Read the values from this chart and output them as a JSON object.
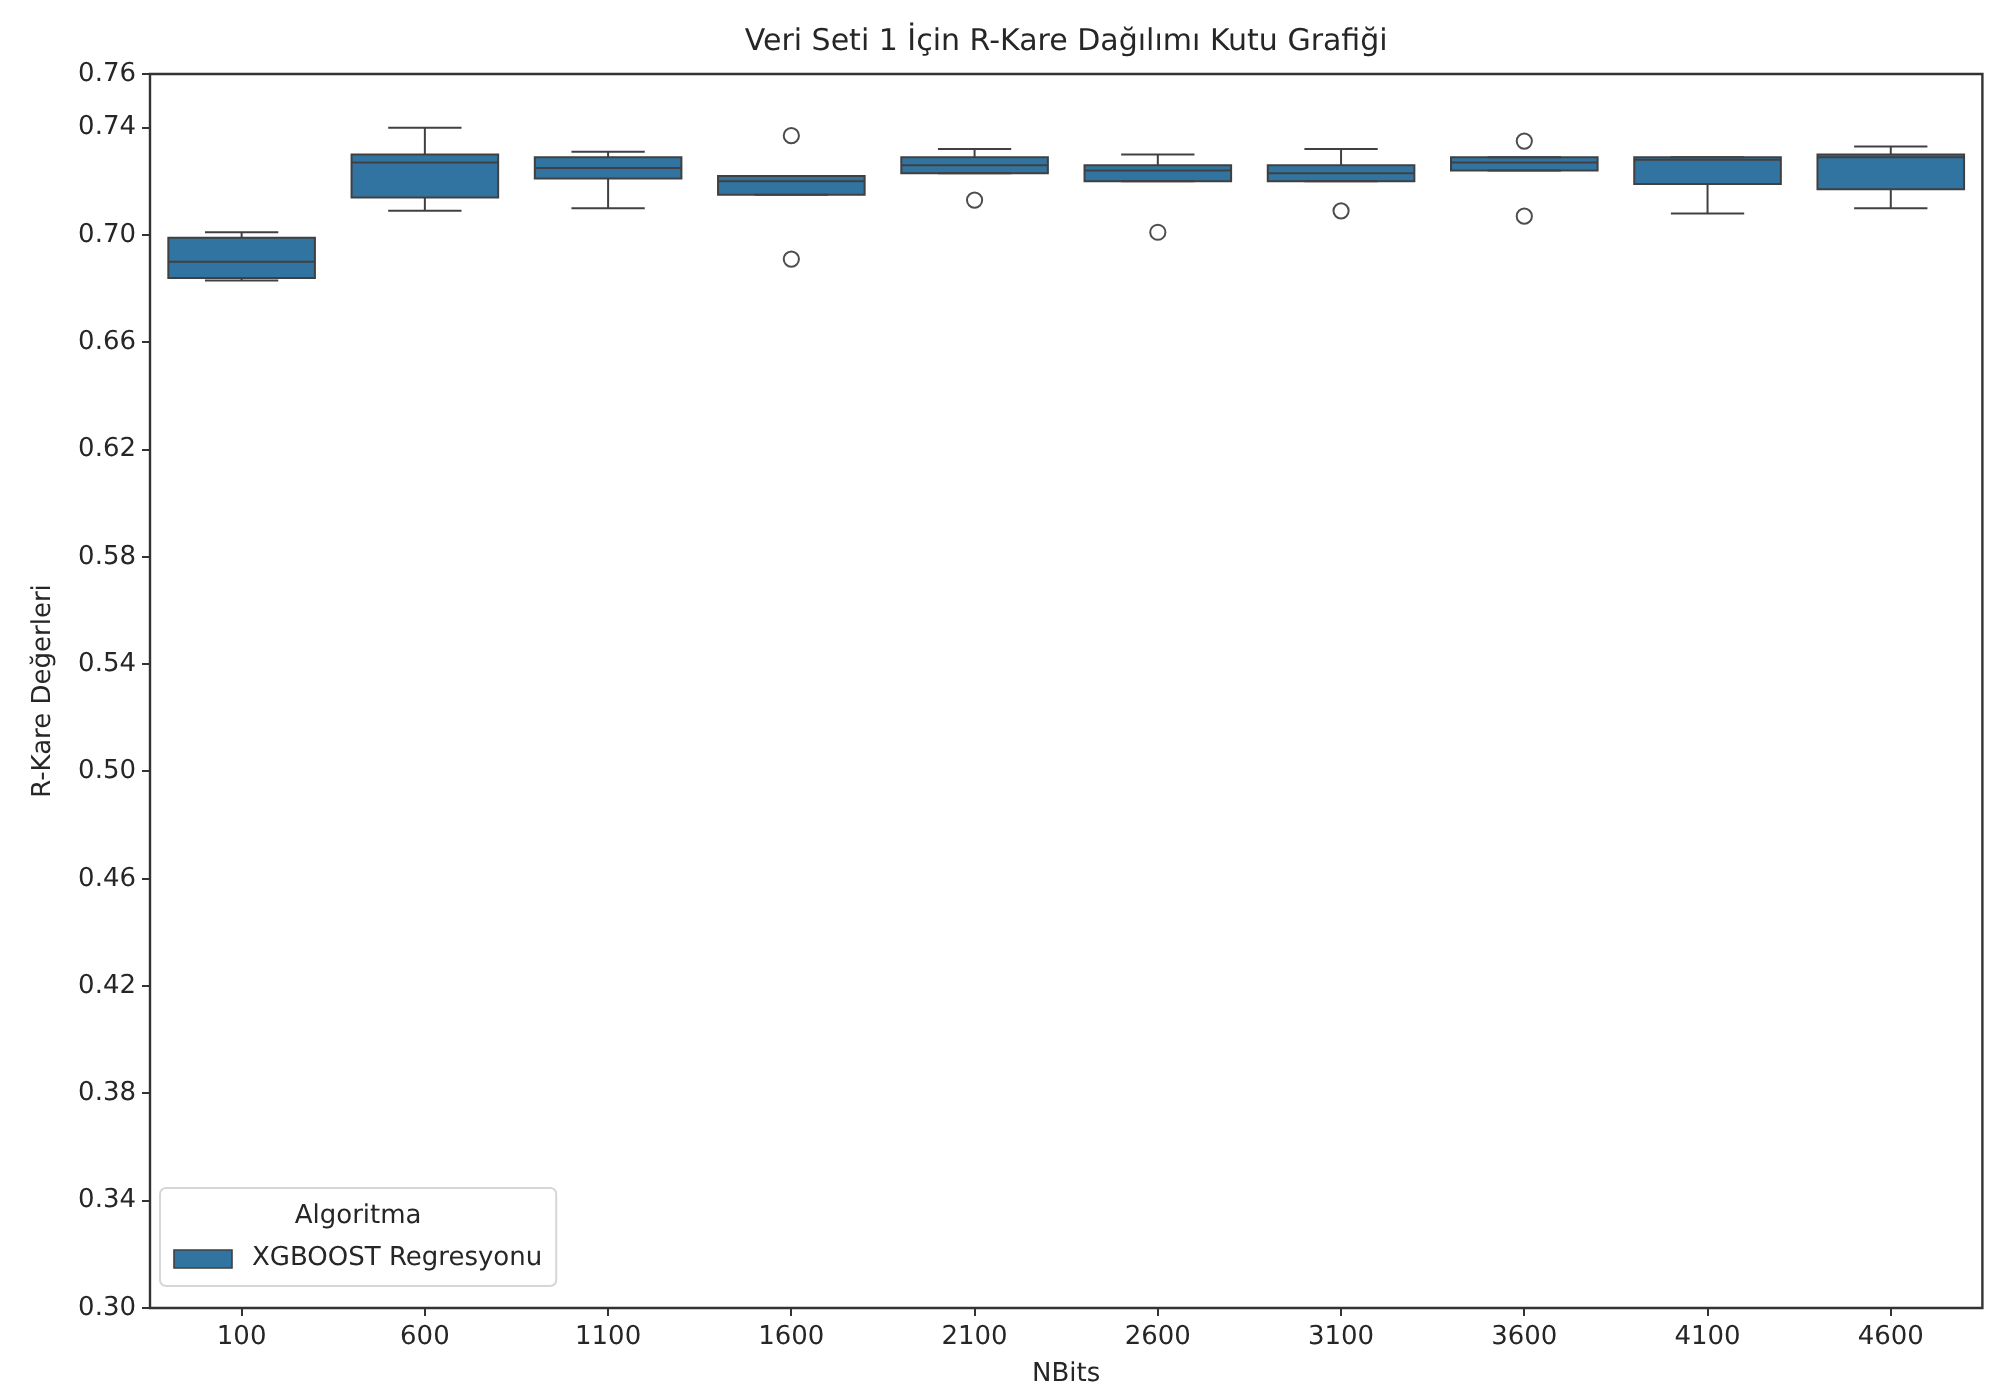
{
  "chart_data": {
    "type": "box",
    "title": "Veri Seti 1 İçin R-Kare Dağılımı Kutu Grafiği",
    "xlabel": "NBits",
    "ylabel": "R-Kare Değerleri",
    "legend_title": "Algoritma",
    "legend": "bottom left",
    "grid": false,
    "categories": [
      "100",
      "600",
      "1100",
      "1600",
      "2100",
      "2600",
      "3100",
      "3600",
      "4100",
      "4600"
    ],
    "series": [
      {
        "name": "XGBOOST Regresyonu",
        "color": "#3274a1",
        "boxes": [
          {
            "low": 0.683,
            "q1": 0.684,
            "median": 0.69,
            "q3": 0.699,
            "high": 0.701
          },
          {
            "low": 0.709,
            "q1": 0.714,
            "median": 0.727,
            "q3": 0.73,
            "high": 0.74
          },
          {
            "low": 0.71,
            "q1": 0.721,
            "median": 0.725,
            "q3": 0.729,
            "high": 0.731
          },
          {
            "low": 0.715,
            "q1": 0.715,
            "median": 0.72,
            "q3": 0.722,
            "high": 0.722,
            "outliers": [
              0.737,
              0.691
            ]
          },
          {
            "low": 0.723,
            "q1": 0.723,
            "median": 0.726,
            "q3": 0.729,
            "high": 0.732,
            "outliers": [
              0.713
            ]
          },
          {
            "low": 0.72,
            "q1": 0.72,
            "median": 0.724,
            "q3": 0.726,
            "high": 0.73,
            "outliers": [
              0.701
            ]
          },
          {
            "low": 0.72,
            "q1": 0.72,
            "median": 0.723,
            "q3": 0.726,
            "high": 0.732,
            "outliers": [
              0.709
            ]
          },
          {
            "low": 0.724,
            "q1": 0.724,
            "median": 0.727,
            "q3": 0.729,
            "high": 0.729,
            "outliers": [
              0.735,
              0.707
            ]
          },
          {
            "low": 0.708,
            "q1": 0.719,
            "median": 0.728,
            "q3": 0.729,
            "high": 0.729
          },
          {
            "low": 0.71,
            "q1": 0.717,
            "median": 0.729,
            "q3": 0.73,
            "high": 0.733
          }
        ]
      }
    ],
    "ylim": [
      0.3,
      0.76
    ],
    "yticks": [
      {
        "value": 0.3,
        "label": "0.30"
      },
      {
        "value": 0.34,
        "label": "0.34"
      },
      {
        "value": 0.38,
        "label": "0.38"
      },
      {
        "value": 0.42,
        "label": "0.42"
      },
      {
        "value": 0.46,
        "label": "0.46"
      },
      {
        "value": 0.5,
        "label": "0.50"
      },
      {
        "value": 0.54,
        "label": "0.54"
      },
      {
        "value": 0.58,
        "label": "0.58"
      },
      {
        "value": 0.62,
        "label": "0.62"
      },
      {
        "value": 0.66,
        "label": "0.66"
      },
      {
        "value": 0.7,
        "label": "0.70"
      },
      {
        "value": 0.74,
        "label": "0.74"
      },
      {
        "value": 0.76,
        "label": "0.76"
      }
    ]
  }
}
